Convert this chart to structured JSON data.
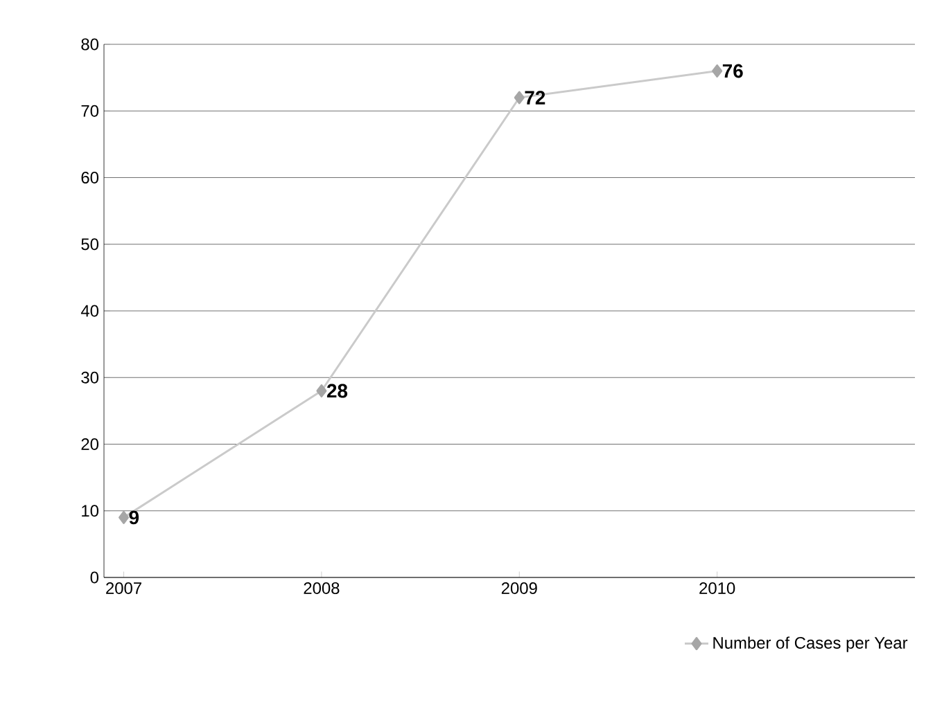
{
  "chart_data": {
    "type": "line",
    "categories": [
      "2007",
      "2008",
      "2009",
      "2010"
    ],
    "series": [
      {
        "name": "Number of Cases per Year",
        "color": "#a6a6a6",
        "values": [
          9,
          28,
          72,
          76
        ]
      }
    ],
    "ylim": [
      0,
      80
    ],
    "yticks": [
      0,
      10,
      20,
      30,
      40,
      50,
      60,
      70,
      80
    ],
    "grid": "y",
    "legend": "bottom right",
    "marker": "diamond",
    "line_style": "solid",
    "data_labels": true
  }
}
